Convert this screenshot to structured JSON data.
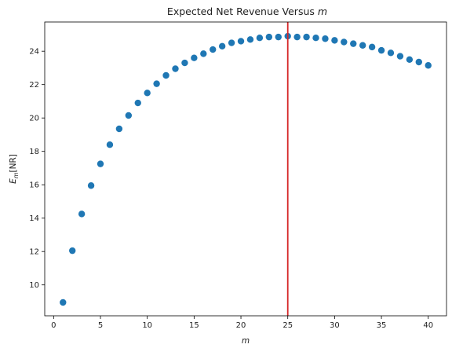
{
  "chart_data": {
    "type": "scatter",
    "title": {
      "text": "Expected Net Revenue Versus ",
      "var": "m"
    },
    "xlabel": {
      "var": "m"
    },
    "ylabel": {
      "base": "E",
      "sub": "m",
      "rest": "[NR]"
    },
    "xlim": [
      -0.95,
      41.95
    ],
    "ylim": [
      8.15,
      25.75
    ],
    "xticks": [
      0,
      5,
      10,
      15,
      20,
      25,
      30,
      35,
      40
    ],
    "yticks": [
      10,
      12,
      14,
      16,
      18,
      20,
      22,
      24
    ],
    "grid": false,
    "marker_color": "#1f77b4",
    "vline": {
      "x": 25,
      "color": "#d62728"
    },
    "x": [
      1,
      2,
      3,
      4,
      5,
      6,
      7,
      8,
      9,
      10,
      11,
      12,
      13,
      14,
      15,
      16,
      17,
      18,
      19,
      20,
      21,
      22,
      23,
      24,
      25,
      26,
      27,
      28,
      29,
      30,
      31,
      32,
      33,
      34,
      35,
      36,
      37,
      38,
      39,
      40
    ],
    "y": [
      8.95,
      12.05,
      14.25,
      15.95,
      17.25,
      18.4,
      19.35,
      20.15,
      20.9,
      21.5,
      22.05,
      22.55,
      22.95,
      23.3,
      23.6,
      23.85,
      24.1,
      24.3,
      24.5,
      24.6,
      24.7,
      24.8,
      24.85,
      24.85,
      24.9,
      24.85,
      24.85,
      24.8,
      24.75,
      24.65,
      24.55,
      24.45,
      24.35,
      24.25,
      24.05,
      23.9,
      23.7,
      23.5,
      23.35,
      23.15
    ]
  }
}
